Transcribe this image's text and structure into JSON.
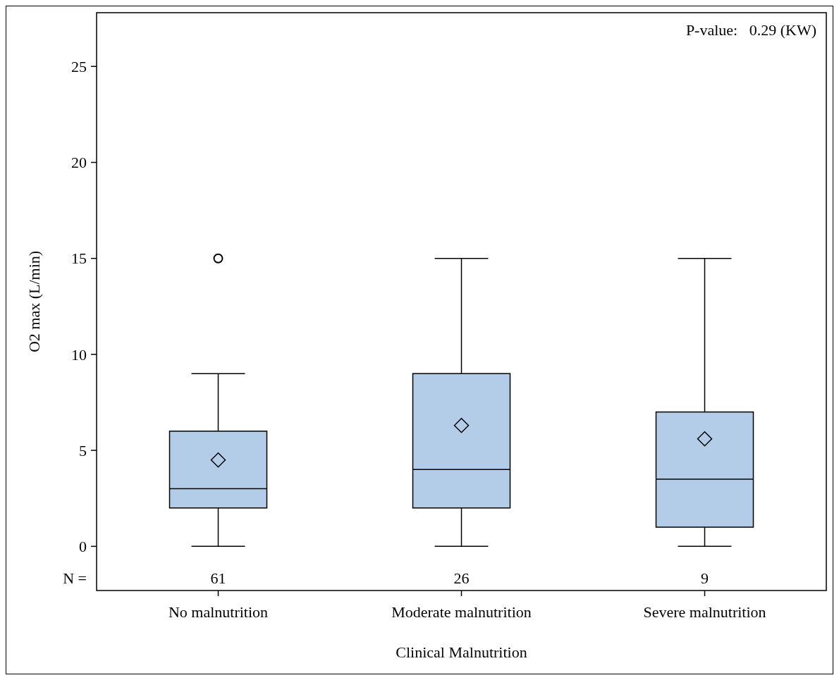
{
  "chart_data": {
    "type": "box",
    "xlabel": "Clinical Malnutrition",
    "ylabel": "O2 max (L/min)",
    "categories": [
      "No malnutrition",
      "Moderate malnutrition",
      "Severe malnutrition"
    ],
    "color": "#b3cde8",
    "boxes": [
      {
        "low": 0,
        "q1": 2,
        "median": 3,
        "q3": 6,
        "high": 9,
        "mean": 4.5,
        "outliers": [
          15
        ]
      },
      {
        "low": 0,
        "q1": 2,
        "median": 4,
        "q3": 9,
        "high": 15,
        "mean": 6.3
      },
      {
        "low": 0,
        "q1": 1,
        "median": 3.5,
        "q3": 7,
        "high": 15,
        "mean": 5.6
      }
    ],
    "ylim": [
      -2.3,
      27.8
    ],
    "yticks": [
      0,
      5,
      10,
      15,
      20,
      25
    ],
    "grid": false,
    "marker": "diamond",
    "annotations": [
      "P-value:   0.29 (KW)",
      "N =",
      "61",
      "26",
      "9"
    ]
  }
}
